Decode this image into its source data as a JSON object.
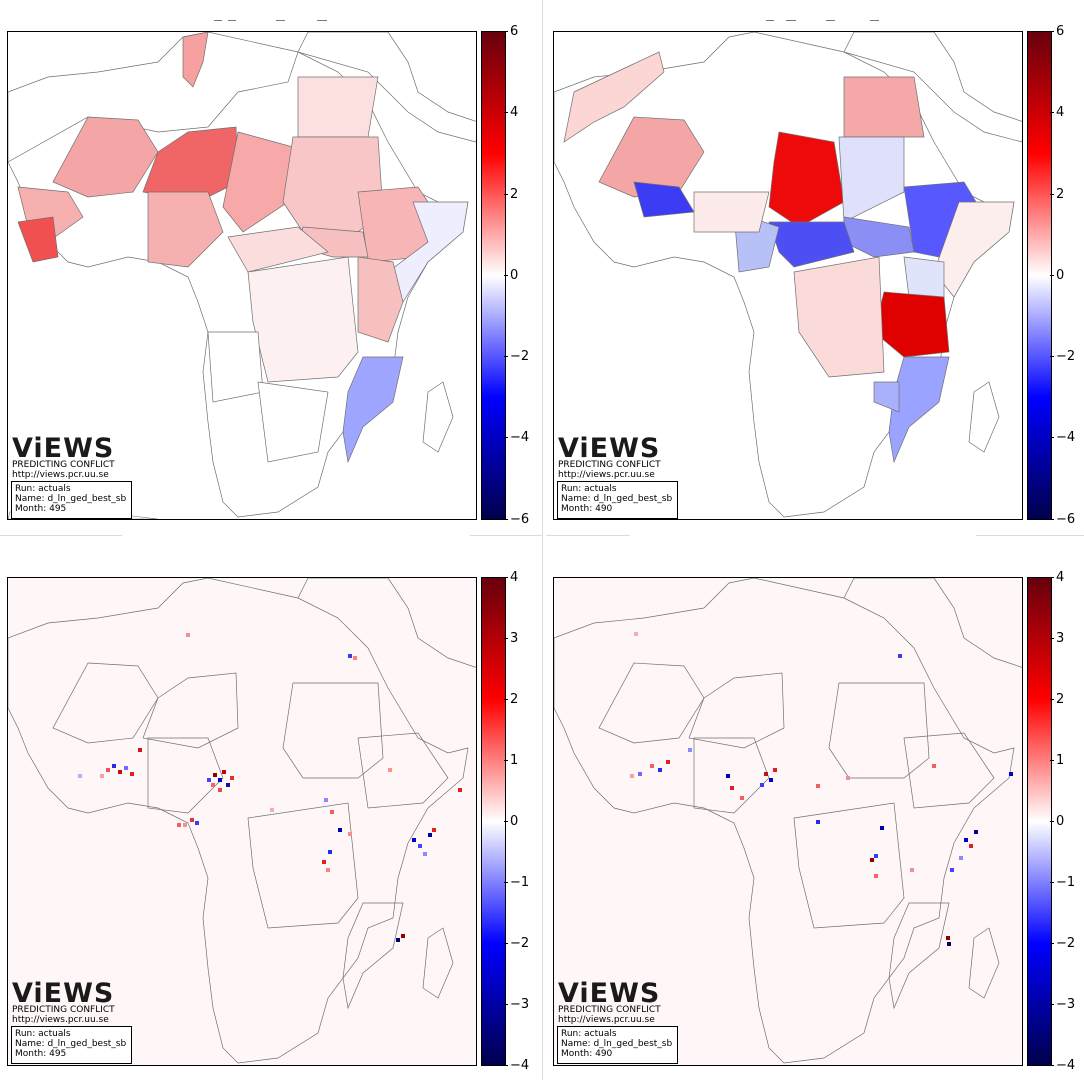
{
  "panels": [
    {
      "id": "country_495",
      "run_label": "Run: actuals",
      "name_label": "Name: d_ln_ged_best_sb",
      "month_label": "Month: 495",
      "colorbar_ticks": [
        "6",
        "4",
        "2",
        "0",
        "−2",
        "−4",
        "−6"
      ],
      "colorbar_range": [
        -6,
        6
      ]
    },
    {
      "id": "country_490",
      "run_label": "Run: actuals",
      "name_label": "Name: d_ln_ged_best_sb",
      "month_label": "Month: 490",
      "colorbar_ticks": [
        "6",
        "4",
        "2",
        "0",
        "−2",
        "−4",
        "−6"
      ],
      "colorbar_range": [
        -6,
        6
      ]
    },
    {
      "id": "grid_495",
      "run_label": "Run: actuals",
      "name_label": "Name: d_ln_ged_best_sb",
      "month_label": "Month: 495",
      "colorbar_ticks": [
        "4",
        "3",
        "2",
        "1",
        "0",
        "−1",
        "−2",
        "−3",
        "−4"
      ],
      "colorbar_range": [
        -4,
        4
      ]
    },
    {
      "id": "grid_490",
      "run_label": "Run: actuals",
      "name_label": "Name: d_ln_ged_best_sb",
      "month_label": "Month: 490",
      "colorbar_ticks": [
        "4",
        "3",
        "2",
        "1",
        "0",
        "−1",
        "−2",
        "−3",
        "−4"
      ],
      "colorbar_range": [
        -4,
        4
      ]
    }
  ],
  "logo": {
    "title": "ViEWS",
    "tagline": "PREDICTING CONFLICT",
    "url": "http://views.pcr.uu.se"
  },
  "colors": {
    "positive_max": "#67000d",
    "positive": "#ff0000",
    "neutral": "#ffffff",
    "negative": "#0000ff",
    "negative_max": "#00004c",
    "no_data": "#fff7f7",
    "border": "#707070"
  }
}
